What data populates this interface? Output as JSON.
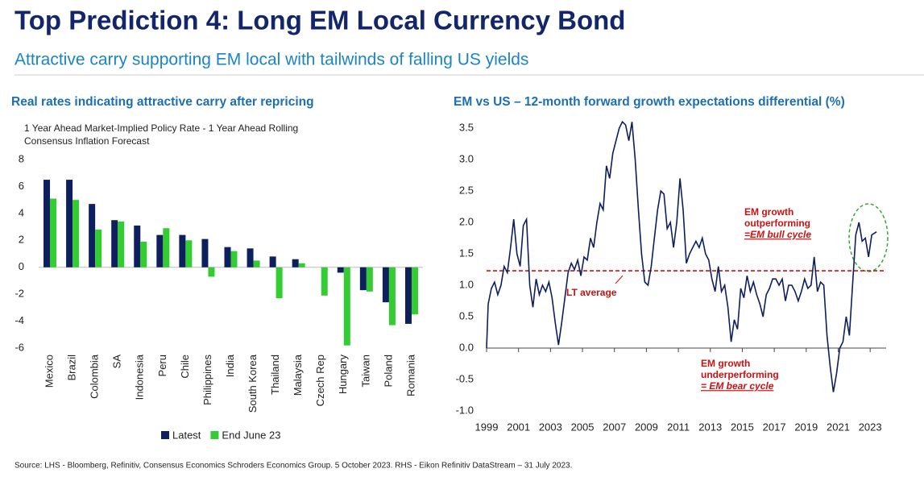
{
  "header": {
    "title": "Top Prediction 4: Long EM Local Currency Bond",
    "subtitle": "Attractive carry supporting EM local with tailwinds of falling US yields"
  },
  "source": "Source: LHS - Bloomberg, Refinitiv, Consensus Economics Schroders Economics Group. 5 October 2023. RHS - Eikon Refinitiv DataStream – 31 July 2023.",
  "chart_data": [
    {
      "type": "bar",
      "title": "Real rates indicating attractive carry after repricing",
      "ylabel": [
        "1 Year Ahead Market-Implied Policy Rate - 1 Year Ahead Rolling",
        "Consensus Inflation Forecast"
      ],
      "categories": [
        "Mexico",
        "Brazil",
        "Colombia",
        "SA",
        "Indonesia",
        "Peru",
        "Chile",
        "Philippines",
        "India",
        "South Korea",
        "Thailand",
        "Malaysia",
        "Czech Rep",
        "Hungary",
        "Taiwan",
        "Poland",
        "Romania"
      ],
      "series": [
        {
          "name": "Latest",
          "color": "#0d1f5c",
          "values": [
            6.5,
            6.5,
            4.7,
            3.5,
            3.1,
            2.4,
            2.4,
            2.1,
            1.5,
            1.4,
            0.8,
            0.6,
            0,
            -0.4,
            -1.7,
            -2.6,
            -4.2
          ]
        },
        {
          "name": "End June 23",
          "color": "#33cc33",
          "values": [
            5.1,
            5.0,
            2.8,
            3.4,
            1.9,
            2.9,
            2.0,
            -0.7,
            1.2,
            0.5,
            -2.3,
            0.3,
            -2.1,
            -5.8,
            -1.8,
            -4.3,
            -3.5
          ]
        }
      ],
      "ylim": [
        -6,
        8
      ],
      "yticks": [
        -6,
        -4,
        -2,
        0,
        2,
        4,
        6,
        8
      ],
      "legend": "bottom"
    },
    {
      "type": "line",
      "title": "EM vs US – 12-month forward growth expectations differential (%)",
      "x": [
        1999.0,
        1999.1,
        1999.3,
        1999.5,
        1999.7,
        1999.9,
        2000.1,
        2000.3,
        2000.5,
        2000.7,
        2000.9,
        2001.1,
        2001.3,
        2001.5,
        2001.7,
        2001.9,
        2002.1,
        2002.3,
        2002.5,
        2002.7,
        2002.9,
        2003.1,
        2003.3,
        2003.5,
        2003.7,
        2003.9,
        2004.1,
        2004.3,
        2004.5,
        2004.7,
        2004.9,
        2005.1,
        2005.3,
        2005.5,
        2005.7,
        2005.9,
        2006.1,
        2006.3,
        2006.5,
        2006.7,
        2006.9,
        2007.1,
        2007.3,
        2007.5,
        2007.7,
        2007.9,
        2008.1,
        2008.3,
        2008.5,
        2008.7,
        2008.9,
        2009.1,
        2009.3,
        2009.5,
        2009.7,
        2009.9,
        2010.1,
        2010.3,
        2010.5,
        2010.7,
        2010.9,
        2011.1,
        2011.3,
        2011.5,
        2011.7,
        2011.9,
        2012.1,
        2012.3,
        2012.5,
        2012.7,
        2012.9,
        2013.1,
        2013.3,
        2013.5,
        2013.7,
        2013.9,
        2014.1,
        2014.3,
        2014.5,
        2014.7,
        2014.9,
        2015.1,
        2015.3,
        2015.5,
        2015.7,
        2015.9,
        2016.1,
        2016.3,
        2016.5,
        2016.7,
        2016.9,
        2017.1,
        2017.3,
        2017.5,
        2017.7,
        2017.9,
        2018.1,
        2018.3,
        2018.5,
        2018.7,
        2018.9,
        2019.1,
        2019.3,
        2019.5,
        2019.7,
        2019.9,
        2020.1,
        2020.3,
        2020.5,
        2020.7,
        2020.9,
        2021.1,
        2021.3,
        2021.5,
        2021.7,
        2021.9,
        2022.1,
        2022.3,
        2022.5,
        2022.7,
        2022.9,
        2023.1,
        2023.4
      ],
      "series": [
        {
          "color": "#0d1f5c",
          "values": [
            0.0,
            0.7,
            0.95,
            1.05,
            0.85,
            1.0,
            1.3,
            1.2,
            1.6,
            2.05,
            1.5,
            1.3,
            1.95,
            2.05,
            1.0,
            0.65,
            1.1,
            0.85,
            1.0,
            0.9,
            1.05,
            0.8,
            0.4,
            0.05,
            0.4,
            0.8,
            1.2,
            1.35,
            1.25,
            1.4,
            1.15,
            1.45,
            1.4,
            1.75,
            1.6,
            2.0,
            2.3,
            2.2,
            2.9,
            2.7,
            3.1,
            3.3,
            3.5,
            3.6,
            3.55,
            3.3,
            3.6,
            3.0,
            2.2,
            1.5,
            1.05,
            1.0,
            1.3,
            1.75,
            2.2,
            2.5,
            2.45,
            1.9,
            2.0,
            1.6,
            2.0,
            2.7,
            2.2,
            1.35,
            1.5,
            1.6,
            1.7,
            1.6,
            1.75,
            1.5,
            1.4,
            1.1,
            0.9,
            1.3,
            0.9,
            1.0,
            0.65,
            0.1,
            0.45,
            0.3,
            0.95,
            0.8,
            1.15,
            0.9,
            1.05,
            0.85,
            0.7,
            0.5,
            0.85,
            0.95,
            1.1,
            1.1,
            1.0,
            1.1,
            0.75,
            1.0,
            1.0,
            0.9,
            0.75,
            0.9,
            1.1,
            0.95,
            1.0,
            1.45,
            0.9,
            1.05,
            1.0,
            0.2,
            -0.3,
            -0.7,
            -0.4,
            0.0,
            0.1,
            0.5,
            0.2,
            1.0,
            1.8,
            2.0,
            1.7,
            1.75,
            1.45,
            1.8,
            1.85
          ]
        }
      ],
      "xlim": [
        1999,
        2024
      ],
      "xticks": [
        1999,
        2001,
        2003,
        2005,
        2007,
        2009,
        2011,
        2013,
        2015,
        2017,
        2019,
        2021,
        2023
      ],
      "ylim": [
        -1.0,
        3.5
      ],
      "yticks": [
        {
          "value": -1.0,
          "label": "-1.0"
        },
        -0.5,
        {
          "value": 0.0,
          "label": "0.0"
        },
        0.5,
        {
          "value": 1.0,
          "label": "1.0"
        },
        1.5,
        {
          "value": 2.0,
          "label": "2.0"
        },
        2.5,
        {
          "value": 3.0,
          "label": "3.0"
        },
        3.5
      ],
      "reference_line": {
        "value": 1.23,
        "color": "#cc1111",
        "label": "LT average"
      },
      "annotations": {
        "bull": [
          "EM growth",
          "outperforming",
          "=EM bull cycle"
        ],
        "bear": [
          "EM growth",
          "underperforming",
          "= EM bear cycle"
        ]
      }
    }
  ]
}
